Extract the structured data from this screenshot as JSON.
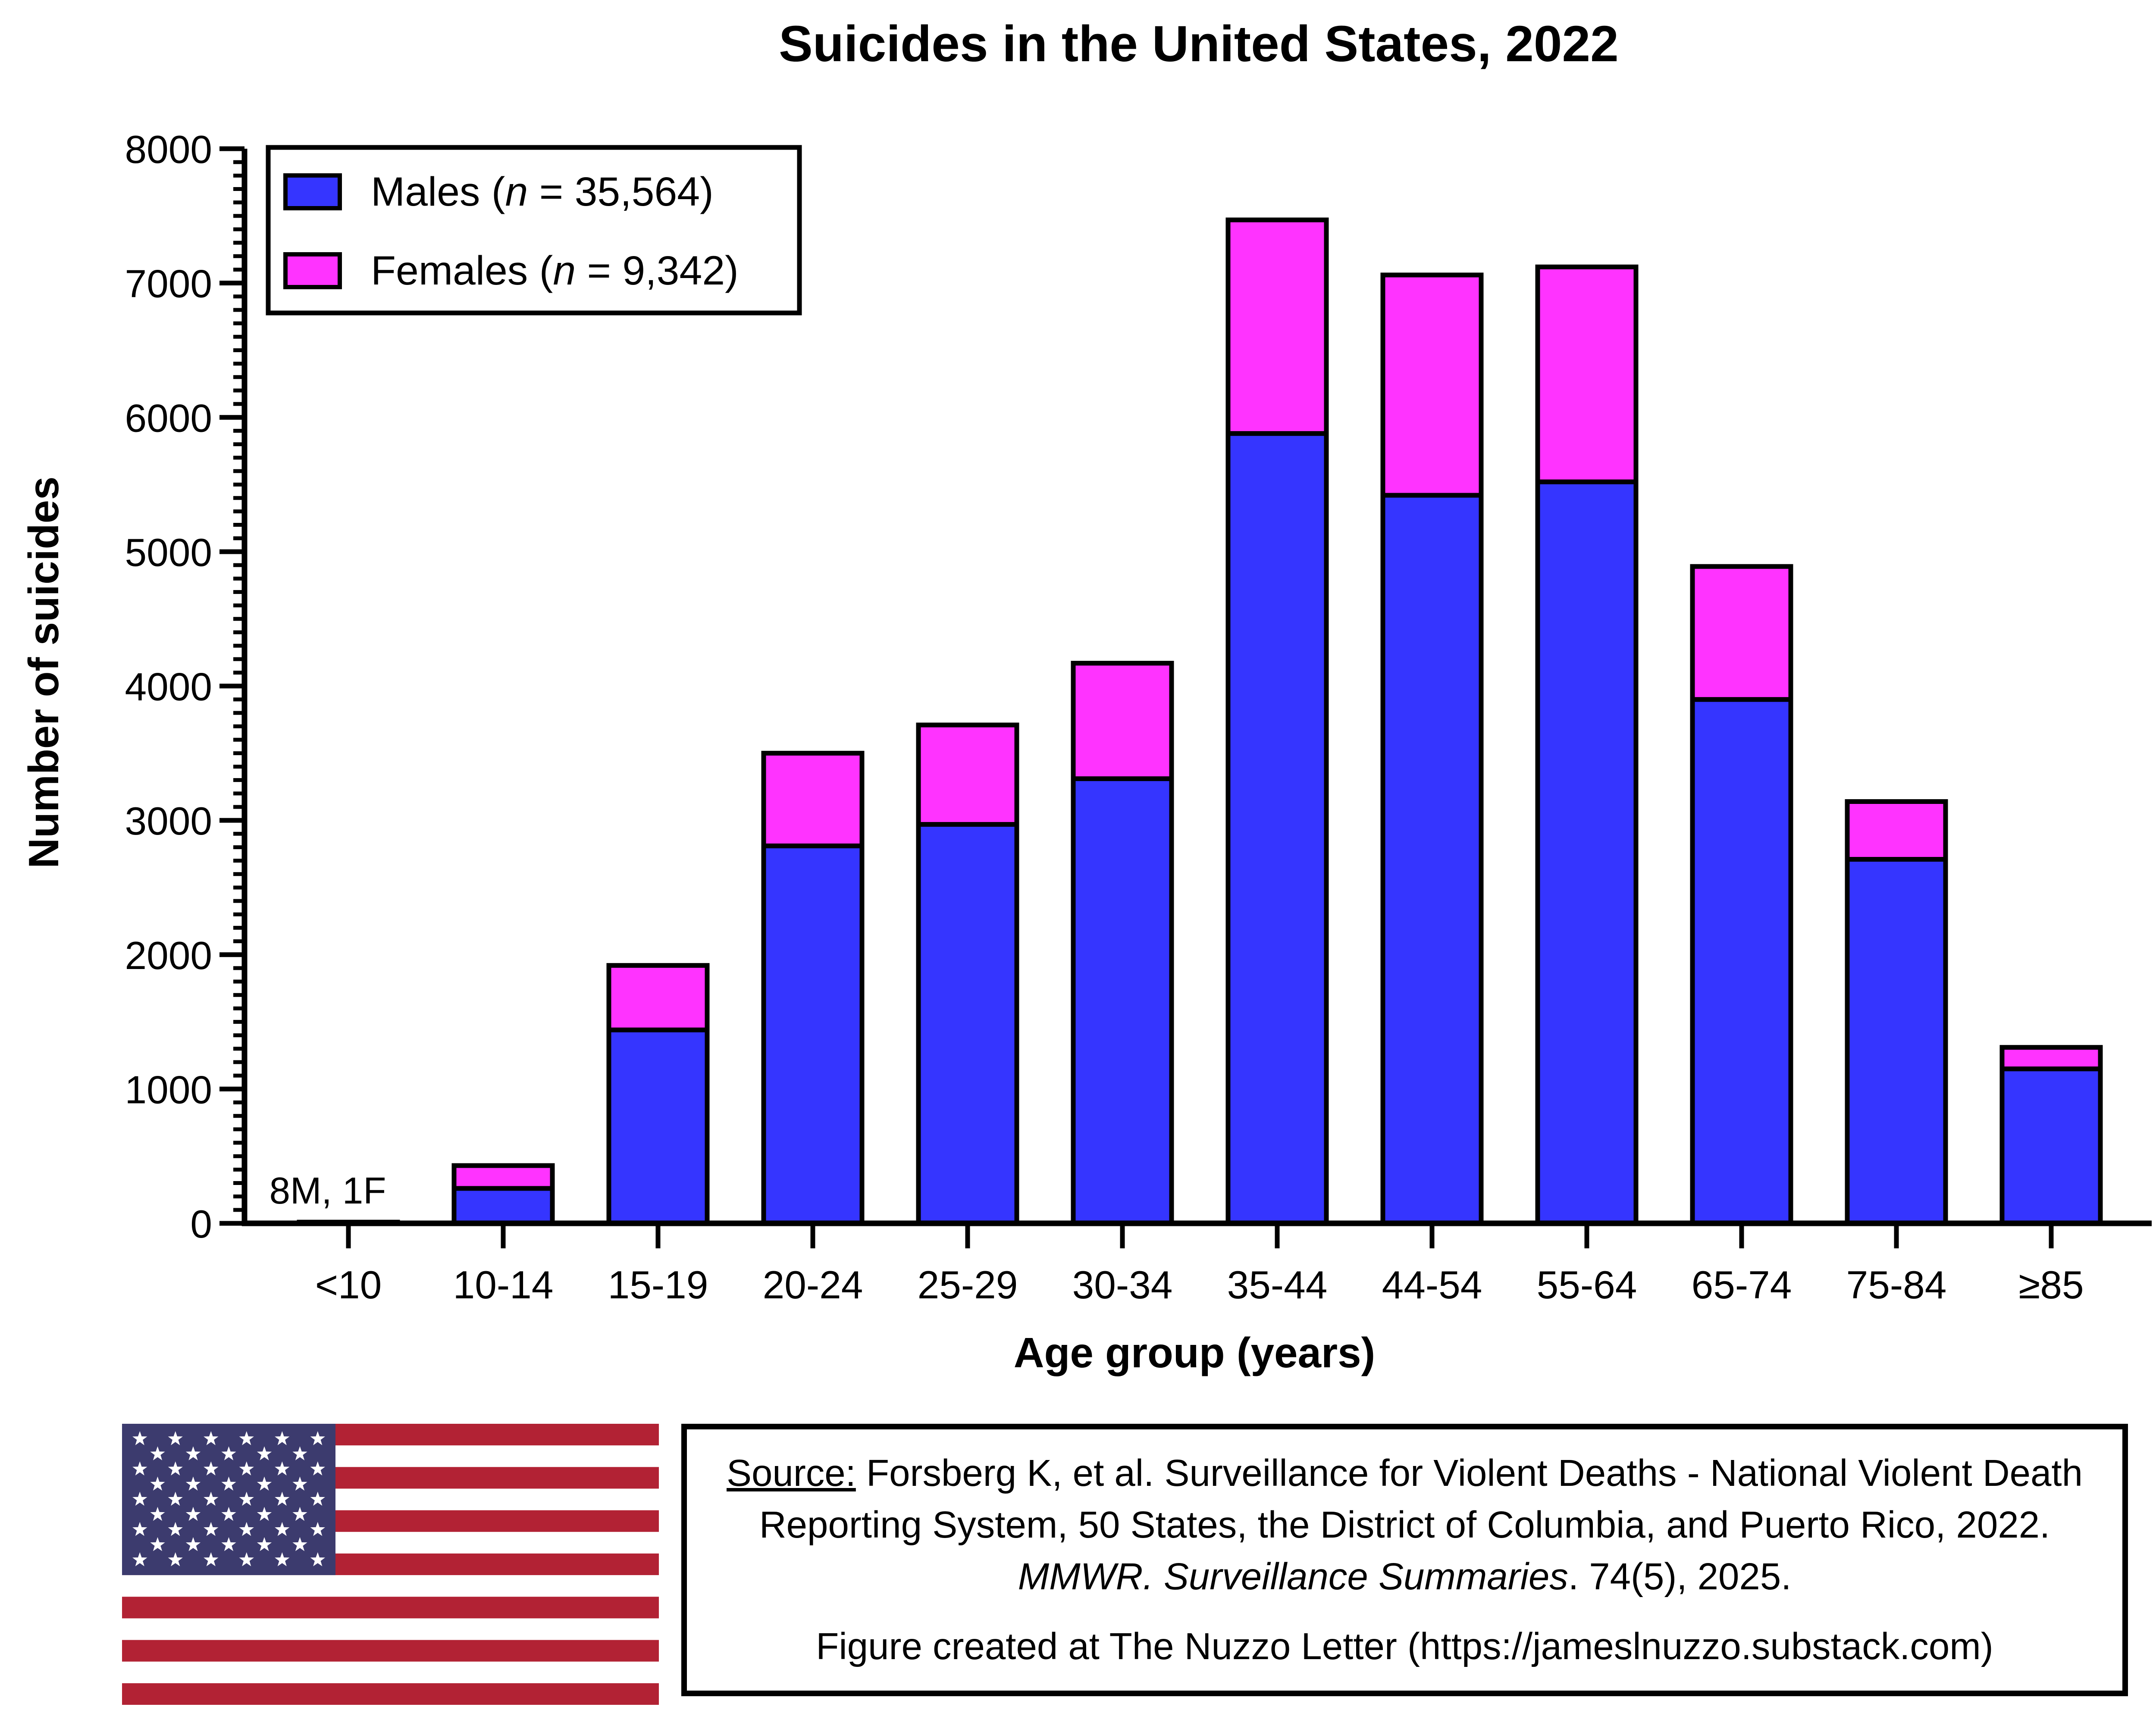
{
  "chart_data": {
    "type": "bar",
    "stacked": true,
    "title": "Suicides in the United States, 2022",
    "xlabel": "Age group (years)",
    "ylabel": "Number of suicides",
    "ylim": [
      0,
      8000
    ],
    "yticks": [
      "0",
      "1000",
      "2000",
      "3000",
      "4000",
      "5000",
      "6000",
      "7000",
      "8000"
    ],
    "categories": [
      "<10",
      "10-14",
      "15-19",
      "20-24",
      "25-29",
      "30-34",
      "35-44",
      "44-54",
      "55-64",
      "65-74",
      "75-84",
      "≥85"
    ],
    "series": [
      {
        "name": "Males",
        "legend_prefix": "Males (",
        "legend_n": "n",
        "legend_suffix": " = 35,564)",
        "color": "#3535FF",
        "values": [
          8,
          260,
          1440,
          2810,
          2970,
          3310,
          5880,
          5420,
          5520,
          3900,
          2710,
          1150
        ]
      },
      {
        "name": "Females",
        "legend_prefix": "Females (",
        "legend_n": "n",
        "legend_suffix": " = 9,342)",
        "color": "#FF33FF",
        "values": [
          1,
          170,
          480,
          690,
          740,
          860,
          1590,
          1640,
          1600,
          990,
          430,
          160
        ]
      }
    ],
    "annotations": [
      {
        "category": "<10",
        "text": "8M, 1F"
      }
    ],
    "legend_position": "top-left"
  },
  "source": {
    "label": "Source:",
    "text1": " Forsberg K, et al. Surveillance for Violent Deaths - National Violent Death Reporting System, 50 States, the District of Columbia, and Puerto Rico, 2022. ",
    "journal": "MMWR. Surveillance Summaries",
    "text2": ". 74(5), 2025."
  },
  "credit": "Figure created at The Nuzzo Letter (https://jameslnuzzo.substack.com)",
  "colors": {
    "flag_red": "#B22234",
    "flag_blue": "#3C3B6E",
    "flag_white": "#FFFFFF"
  }
}
